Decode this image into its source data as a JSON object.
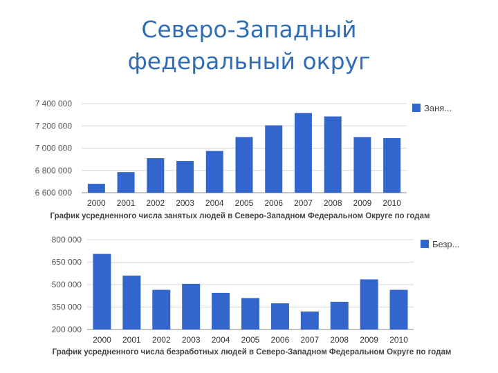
{
  "page": {
    "title_line1": "Северо-Западный",
    "title_line2": "федеральный округ"
  },
  "chart_data": [
    {
      "type": "bar",
      "title": "График усредненного числа занятых людей в Северо-Западном Федеральном Округе по годам",
      "categories": [
        "2000",
        "2001",
        "2002",
        "2003",
        "2004",
        "2005",
        "2006",
        "2007",
        "2008",
        "2009",
        "2010"
      ],
      "series": [
        {
          "name": "Заня...",
          "values": [
            6680000,
            6785000,
            6910000,
            6885000,
            6975000,
            7100000,
            7205000,
            7315000,
            7285000,
            7100000,
            7090000
          ]
        }
      ],
      "ylim": [
        6600000,
        7400000
      ],
      "yticks": [
        6600000,
        6800000,
        7000000,
        7200000,
        7400000
      ],
      "ytick_labels": [
        "6 600 000",
        "6 800 000",
        "7 000 000",
        "7 200 000",
        "7 400 000"
      ],
      "legend": "top-right",
      "grid": true,
      "color": "#3366cc"
    },
    {
      "type": "bar",
      "title": "График усредненного числа безработных людей в Северо-Западном Федеральном Округе по годам",
      "categories": [
        "2000",
        "2001",
        "2002",
        "2003",
        "2004",
        "2005",
        "2006",
        "2007",
        "2008",
        "2009",
        "2010"
      ],
      "series": [
        {
          "name": "Безр...",
          "values": [
            705000,
            560000,
            465000,
            505000,
            445000,
            410000,
            375000,
            320000,
            385000,
            535000,
            465000
          ]
        }
      ],
      "ylim": [
        200000,
        800000
      ],
      "yticks": [
        200000,
        350000,
        500000,
        650000,
        800000
      ],
      "ytick_labels": [
        "200 000",
        "350 000",
        "500 000",
        "650 000",
        "800 000"
      ],
      "legend": "top-right",
      "grid": true,
      "color": "#3366cc"
    }
  ]
}
